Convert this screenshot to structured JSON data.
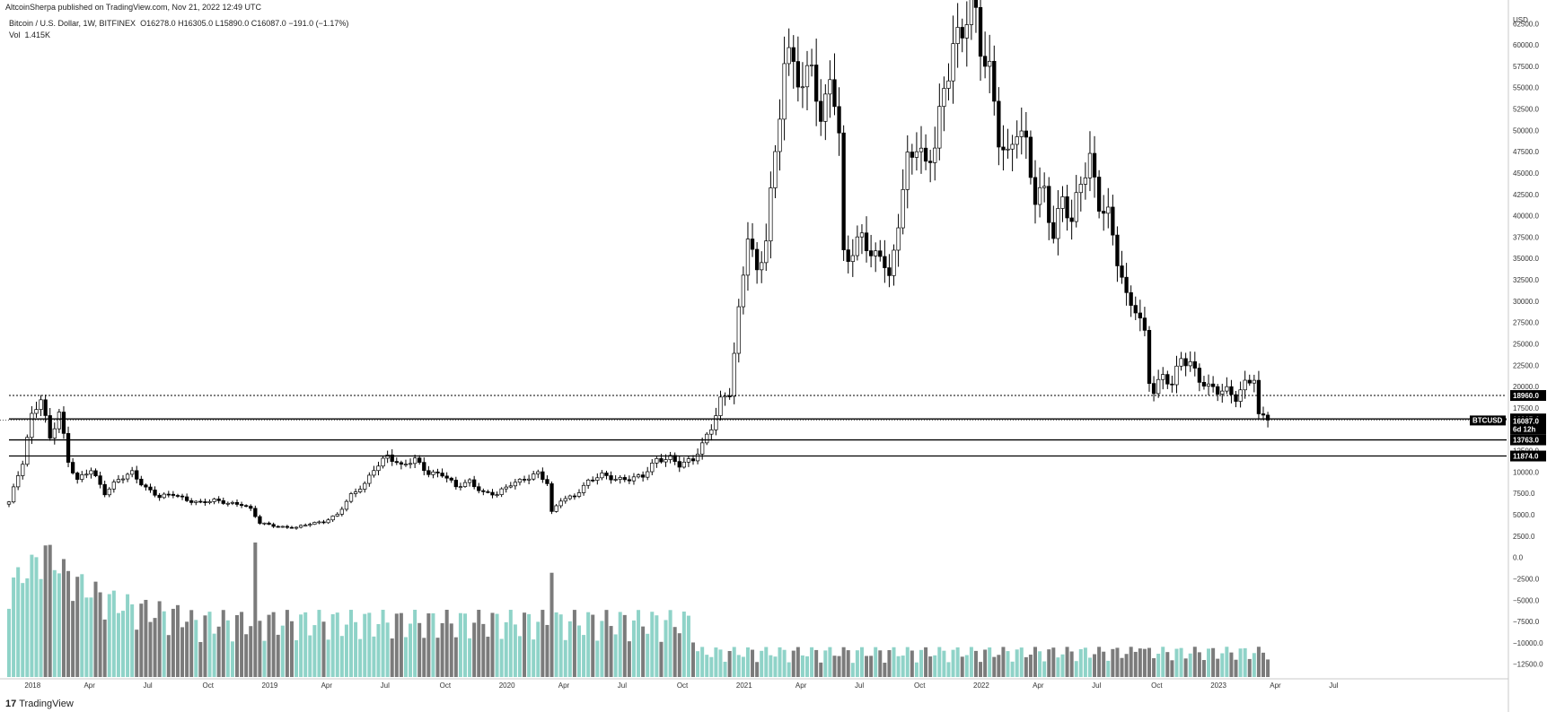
{
  "header": {
    "publisher": "AltcoinSherpa published on TradingView.com, Nov 21, 2022 12:49 UTC",
    "symbol_line": {
      "name": "Bitcoin / U.S. Dollar, 1W, BITFINEX",
      "open": "O16278.0",
      "high": "H16305.0",
      "low": "L15890.0",
      "close": "C16087.0",
      "change": "−191.0 (−1.17%)"
    },
    "volume_label": "Vol",
    "volume_value": "1.415K"
  },
  "footer": {
    "logo_text": "TradingView",
    "logo_mark": "17"
  },
  "colors": {
    "up_body": "#ffffff",
    "down_body": "#000000",
    "vol_up": "#8fd3c8",
    "vol_down": "#7b7b7b",
    "grid": "none",
    "tag_bg": "#000000"
  },
  "chart_data": {
    "type": "candlestick",
    "title": "",
    "xlabel": "",
    "ylabel": "USD",
    "interval": "1W",
    "exchange": "BITFINEX",
    "ylim": [
      -14000,
      64000
    ],
    "grid": false,
    "y_ticks": [
      "62500.0",
      "60000.0",
      "57500.0",
      "55000.0",
      "52500.0",
      "50000.0",
      "47500.0",
      "45000.0",
      "42500.0",
      "40000.0",
      "37500.0",
      "35000.0",
      "32500.0",
      "30000.0",
      "27500.0",
      "25000.0",
      "22500.0",
      "20000.0",
      "17500.0",
      "15000.0",
      "12500.0",
      "10000.0",
      "7500.0",
      "5000.0",
      "2500.0",
      "0.0",
      "−2500.0",
      "−5000.0",
      "−7500.0",
      "−10000.0",
      "−12500.0"
    ],
    "x_ticks": [
      "2018",
      "Apr",
      "Jul",
      "Oct",
      "2019",
      "Apr",
      "Jul",
      "Oct",
      "2020",
      "Apr",
      "Jul",
      "Oct",
      "2021",
      "Apr",
      "Jul",
      "Oct",
      "2022",
      "Apr",
      "Jul",
      "Oct",
      "2023",
      "Apr",
      "Jul"
    ],
    "price_levels": [
      {
        "label": "18960.0",
        "value": 18960,
        "style": "dotted"
      },
      {
        "label": "16215.4",
        "value": 16215.4,
        "style": "solid"
      },
      {
        "label": "13763.0",
        "value": 13763,
        "style": "solid"
      },
      {
        "label": "11874.0",
        "value": 11874,
        "style": "solid"
      }
    ],
    "last_price": {
      "symbol": "BTCUSD",
      "value": "16087.0",
      "countdown": "6d 12h"
    },
    "anchors": [
      {
        "t": 0,
        "p": 6500
      },
      {
        "t": 3,
        "p": 11000
      },
      {
        "t": 5,
        "p": 16500
      },
      {
        "t": 7,
        "p": 19000
      },
      {
        "t": 9,
        "p": 14000
      },
      {
        "t": 11,
        "p": 17000
      },
      {
        "t": 13,
        "p": 11000
      },
      {
        "t": 15,
        "p": 9000
      },
      {
        "t": 18,
        "p": 10500
      },
      {
        "t": 21,
        "p": 7500
      },
      {
        "t": 24,
        "p": 9000
      },
      {
        "t": 27,
        "p": 10000
      },
      {
        "t": 30,
        "p": 8200
      },
      {
        "t": 33,
        "p": 7000
      },
      {
        "t": 36,
        "p": 7400
      },
      {
        "t": 39,
        "p": 6800
      },
      {
        "t": 42,
        "p": 6400
      },
      {
        "t": 45,
        "p": 6600
      },
      {
        "t": 48,
        "p": 6400
      },
      {
        "t": 51,
        "p": 6300
      },
      {
        "t": 53,
        "p": 5600
      },
      {
        "t": 55,
        "p": 4000
      },
      {
        "t": 57,
        "p": 3800
      },
      {
        "t": 60,
        "p": 3600
      },
      {
        "t": 63,
        "p": 3500
      },
      {
        "t": 66,
        "p": 3900
      },
      {
        "t": 69,
        "p": 4200
      },
      {
        "t": 72,
        "p": 5100
      },
      {
        "t": 75,
        "p": 7200
      },
      {
        "t": 78,
        "p": 8500
      },
      {
        "t": 80,
        "p": 10500
      },
      {
        "t": 83,
        "p": 12000
      },
      {
        "t": 86,
        "p": 10500
      },
      {
        "t": 89,
        "p": 11500
      },
      {
        "t": 92,
        "p": 10000
      },
      {
        "t": 95,
        "p": 9700
      },
      {
        "t": 98,
        "p": 8200
      },
      {
        "t": 101,
        "p": 9000
      },
      {
        "t": 104,
        "p": 7600
      },
      {
        "t": 107,
        "p": 7300
      },
      {
        "t": 110,
        "p": 8600
      },
      {
        "t": 113,
        "p": 9300
      },
      {
        "t": 116,
        "p": 9800
      },
      {
        "t": 118,
        "p": 8600
      },
      {
        "t": 119,
        "p": 5200
      },
      {
        "t": 121,
        "p": 6800
      },
      {
        "t": 124,
        "p": 7300
      },
      {
        "t": 127,
        "p": 8800
      },
      {
        "t": 130,
        "p": 9600
      },
      {
        "t": 133,
        "p": 9300
      },
      {
        "t": 136,
        "p": 9200
      },
      {
        "t": 139,
        "p": 9400
      },
      {
        "t": 142,
        "p": 11500
      },
      {
        "t": 145,
        "p": 11800
      },
      {
        "t": 147,
        "p": 10800
      },
      {
        "t": 150,
        "p": 11300
      },
      {
        "t": 152,
        "p": 13200
      },
      {
        "t": 154,
        "p": 15500
      },
      {
        "t": 156,
        "p": 18500
      },
      {
        "t": 158,
        "p": 19200
      },
      {
        "t": 159,
        "p": 23500
      },
      {
        "t": 161,
        "p": 33000
      },
      {
        "t": 162,
        "p": 38000
      },
      {
        "t": 164,
        "p": 33500
      },
      {
        "t": 166,
        "p": 38000
      },
      {
        "t": 168,
        "p": 47000
      },
      {
        "t": 170,
        "p": 57000
      },
      {
        "t": 172,
        "p": 58000
      },
      {
        "t": 174,
        "p": 55000
      },
      {
        "t": 176,
        "p": 59500
      },
      {
        "t": 178,
        "p": 50000
      },
      {
        "t": 180,
        "p": 56500
      },
      {
        "t": 182,
        "p": 48000
      },
      {
        "t": 183,
        "p": 36000
      },
      {
        "t": 185,
        "p": 35500
      },
      {
        "t": 187,
        "p": 39000
      },
      {
        "t": 189,
        "p": 34500
      },
      {
        "t": 191,
        "p": 35500
      },
      {
        "t": 193,
        "p": 32000
      },
      {
        "t": 195,
        "p": 40000
      },
      {
        "t": 197,
        "p": 47000
      },
      {
        "t": 199,
        "p": 48500
      },
      {
        "t": 201,
        "p": 45000
      },
      {
        "t": 203,
        "p": 48000
      },
      {
        "t": 205,
        "p": 55000
      },
      {
        "t": 207,
        "p": 61000
      },
      {
        "t": 209,
        "p": 61500
      },
      {
        "t": 211,
        "p": 65500
      },
      {
        "t": 213,
        "p": 59000
      },
      {
        "t": 215,
        "p": 57000
      },
      {
        "t": 217,
        "p": 50000
      },
      {
        "t": 219,
        "p": 47000
      },
      {
        "t": 221,
        "p": 50000
      },
      {
        "t": 223,
        "p": 47500
      },
      {
        "t": 225,
        "p": 42000
      },
      {
        "t": 227,
        "p": 43500
      },
      {
        "t": 229,
        "p": 38000
      },
      {
        "t": 231,
        "p": 42000
      },
      {
        "t": 233,
        "p": 38500
      },
      {
        "t": 235,
        "p": 44000
      },
      {
        "t": 237,
        "p": 47000
      },
      {
        "t": 239,
        "p": 42000
      },
      {
        "t": 241,
        "p": 40000
      },
      {
        "t": 243,
        "p": 34500
      },
      {
        "t": 245,
        "p": 30000
      },
      {
        "t": 247,
        "p": 29500
      },
      {
        "t": 249,
        "p": 26500
      },
      {
        "t": 250,
        "p": 21000
      },
      {
        "t": 251,
        "p": 19500
      },
      {
        "t": 253,
        "p": 21000
      },
      {
        "t": 255,
        "p": 20000
      },
      {
        "t": 257,
        "p": 23500
      },
      {
        "t": 259,
        "p": 23000
      },
      {
        "t": 261,
        "p": 21000
      },
      {
        "t": 263,
        "p": 19700
      },
      {
        "t": 265,
        "p": 19300
      },
      {
        "t": 267,
        "p": 19500
      },
      {
        "t": 269,
        "p": 19000
      },
      {
        "t": 271,
        "p": 20500
      },
      {
        "t": 273,
        "p": 21000
      },
      {
        "t": 274,
        "p": 16300
      },
      {
        "t": 276,
        "p": 16087
      }
    ]
  }
}
